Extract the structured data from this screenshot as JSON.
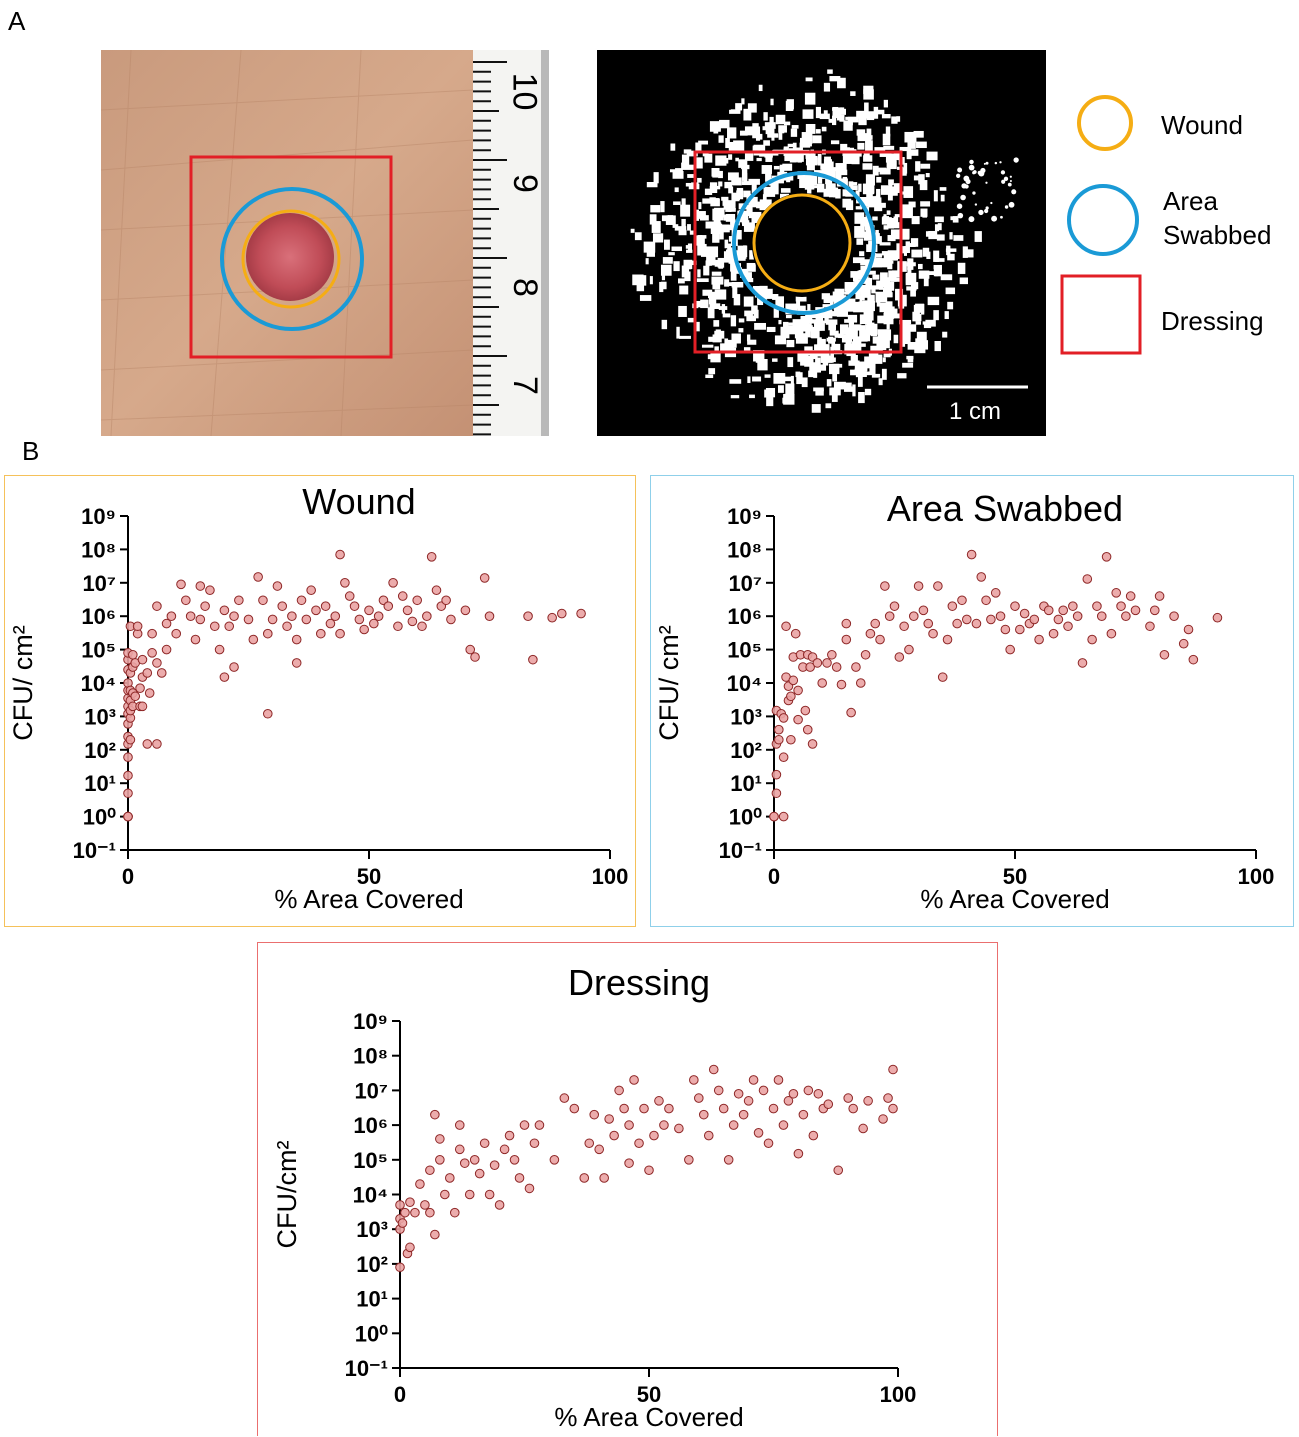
{
  "panels": {
    "a": "A",
    "b": "B"
  },
  "legend": {
    "wound": "Wound",
    "area_swabbed_line1": "Area",
    "area_swabbed_line2": "Swabbed",
    "dressing": "Dressing"
  },
  "colors": {
    "wound": "#f5ad14",
    "area_swabbed": "#1a9ad6",
    "dressing": "#e21f26",
    "point_fill": "#eaa3a3",
    "point_stroke": "#8e2727"
  },
  "ruler": {
    "ticks": [
      "10",
      "9",
      "8",
      "7"
    ]
  },
  "scale_bar": {
    "label": "1 cm"
  },
  "chart_data": [
    {
      "type": "scatter",
      "title": "Wound",
      "xlabel": "% Area Covered",
      "ylabel": "CFU/ cm²",
      "y_scale": "log10",
      "xlim": [
        0,
        100
      ],
      "ylim_exponent": [
        -1,
        9
      ],
      "x_ticks": [
        "0",
        "50",
        "100"
      ],
      "y_ticks": [
        "10⁻¹",
        "10⁰",
        "10¹",
        "10²",
        "10³",
        "10⁴",
        "10⁵",
        "10⁶",
        "10⁷",
        "10⁸",
        "10⁹"
      ],
      "border_color": "#f5c15a",
      "points": [
        [
          0,
          1
        ],
        [
          0,
          1
        ],
        [
          0,
          1
        ],
        [
          0,
          5
        ],
        [
          0,
          17
        ],
        [
          0,
          60
        ],
        [
          0,
          150
        ],
        [
          0,
          250
        ],
        [
          0,
          600
        ],
        [
          0,
          1200
        ],
        [
          0,
          2000
        ],
        [
          0,
          3500
        ],
        [
          0,
          6000
        ],
        [
          0,
          10000
        ],
        [
          0,
          25000
        ],
        [
          0,
          50000
        ],
        [
          0,
          80000
        ],
        [
          0.5,
          200
        ],
        [
          0.5,
          900
        ],
        [
          0.5,
          1500
        ],
        [
          0.5,
          3000
        ],
        [
          0.5,
          6000
        ],
        [
          0.5,
          20000
        ],
        [
          0.5,
          500000
        ],
        [
          1,
          2000
        ],
        [
          1,
          5000
        ],
        [
          1,
          30000
        ],
        [
          1,
          70000
        ],
        [
          1.5,
          4000
        ],
        [
          1.5,
          40000
        ],
        [
          2,
          300000
        ],
        [
          2,
          500000
        ],
        [
          2.5,
          2000
        ],
        [
          2.5,
          7000
        ],
        [
          3,
          50000
        ],
        [
          3,
          15000
        ],
        [
          3,
          2000
        ],
        [
          4,
          150
        ],
        [
          4,
          20000
        ],
        [
          4.5,
          5000
        ],
        [
          5,
          80000
        ],
        [
          5,
          300000
        ],
        [
          6,
          150
        ],
        [
          6,
          40000
        ],
        [
          6,
          2000000
        ],
        [
          7,
          20000
        ],
        [
          8,
          600000
        ],
        [
          8,
          100000
        ],
        [
          9,
          1000000
        ],
        [
          10,
          300000
        ],
        [
          11,
          9000000
        ],
        [
          12,
          3000000
        ],
        [
          13,
          1000000
        ],
        [
          14,
          200000
        ],
        [
          15,
          8000000
        ],
        [
          15,
          800000
        ],
        [
          16,
          2000000
        ],
        [
          17,
          6000000
        ],
        [
          18,
          500000
        ],
        [
          19,
          100000
        ],
        [
          20,
          15000
        ],
        [
          20,
          1500000
        ],
        [
          21,
          500000
        ],
        [
          22,
          30000
        ],
        [
          22,
          1000000
        ],
        [
          23,
          3000000
        ],
        [
          25,
          800000
        ],
        [
          26,
          200000
        ],
        [
          27,
          15000000
        ],
        [
          28,
          3000000
        ],
        [
          29,
          1200
        ],
        [
          29,
          300000
        ],
        [
          30,
          800000
        ],
        [
          31,
          8000000
        ],
        [
          32,
          2000000
        ],
        [
          33,
          500000
        ],
        [
          34,
          1000000
        ],
        [
          35,
          200000
        ],
        [
          35,
          40000
        ],
        [
          36,
          3000000
        ],
        [
          37,
          800000
        ],
        [
          38,
          6000000
        ],
        [
          39,
          1500000
        ],
        [
          40,
          300000
        ],
        [
          41,
          2000000
        ],
        [
          42,
          600000
        ],
        [
          43,
          1000000
        ],
        [
          44,
          70000000
        ],
        [
          44,
          300000
        ],
        [
          45,
          10000000
        ],
        [
          46,
          4000000
        ],
        [
          47,
          2000000
        ],
        [
          48,
          800000
        ],
        [
          49,
          400000
        ],
        [
          50,
          1500000
        ],
        [
          51,
          600000
        ],
        [
          52,
          1000000
        ],
        [
          53,
          3000000
        ],
        [
          54,
          2000000
        ],
        [
          55,
          10000000
        ],
        [
          56,
          500000
        ],
        [
          57,
          4000000
        ],
        [
          58,
          1500000
        ],
        [
          59,
          700000
        ],
        [
          60,
          3000000
        ],
        [
          61,
          500000
        ],
        [
          62,
          1000000
        ],
        [
          63,
          60000000
        ],
        [
          64,
          6000000
        ],
        [
          65,
          2000000
        ],
        [
          66,
          3000000
        ],
        [
          67,
          800000
        ],
        [
          70,
          1500000
        ],
        [
          71,
          100000
        ],
        [
          72,
          60000
        ],
        [
          74,
          14000000
        ],
        [
          75,
          1000000
        ],
        [
          83,
          1000000
        ],
        [
          84,
          50000
        ],
        [
          88,
          900000
        ],
        [
          90,
          1200000
        ],
        [
          94,
          1200000
        ]
      ]
    },
    {
      "type": "scatter",
      "title": "Area Swabbed",
      "xlabel": "% Area Covered",
      "ylabel": "CFU/ cm²",
      "y_scale": "log10",
      "xlim": [
        0,
        100
      ],
      "ylim_exponent": [
        -1,
        9
      ],
      "x_ticks": [
        "0",
        "50",
        "100"
      ],
      "y_ticks": [
        "10⁻¹",
        "10⁰",
        "10¹",
        "10²",
        "10³",
        "10⁴",
        "10⁵",
        "10⁶",
        "10⁷",
        "10⁸",
        "10⁹"
      ],
      "border_color": "#8fd0ea",
      "points": [
        [
          0,
          1
        ],
        [
          0,
          1
        ],
        [
          0.5,
          5
        ],
        [
          0.5,
          18
        ],
        [
          0.5,
          150
        ],
        [
          0.5,
          1500
        ],
        [
          1,
          400
        ],
        [
          1,
          200
        ],
        [
          1.5,
          1200
        ],
        [
          2,
          1
        ],
        [
          2,
          900
        ],
        [
          2,
          60
        ],
        [
          2.5,
          500000
        ],
        [
          2.5,
          15000
        ],
        [
          3,
          3000
        ],
        [
          3,
          8000
        ],
        [
          3.5,
          200
        ],
        [
          3.5,
          4000
        ],
        [
          4,
          12000
        ],
        [
          4,
          60000
        ],
        [
          4.5,
          300000
        ],
        [
          5,
          800
        ],
        [
          5,
          6000
        ],
        [
          5.5,
          70000
        ],
        [
          6,
          30000
        ],
        [
          6.5,
          1500
        ],
        [
          7,
          400
        ],
        [
          7,
          70000
        ],
        [
          7.5,
          30000
        ],
        [
          8,
          150
        ],
        [
          8,
          60000
        ],
        [
          9,
          40000
        ],
        [
          10,
          10000
        ],
        [
          11,
          40000
        ],
        [
          12,
          70000
        ],
        [
          13,
          30000
        ],
        [
          14,
          9000
        ],
        [
          15,
          200000
        ],
        [
          15,
          600000
        ],
        [
          16,
          1300
        ],
        [
          17,
          30000
        ],
        [
          18,
          10000
        ],
        [
          19,
          70000
        ],
        [
          20,
          300000
        ],
        [
          21,
          600000
        ],
        [
          22,
          200000
        ],
        [
          23,
          8000000
        ],
        [
          24,
          1000000
        ],
        [
          25,
          2000000
        ],
        [
          26,
          60000
        ],
        [
          27,
          500000
        ],
        [
          28,
          100000
        ],
        [
          29,
          1000000
        ],
        [
          30,
          8000000
        ],
        [
          31,
          1500000
        ],
        [
          32,
          600000
        ],
        [
          33,
          300000
        ],
        [
          34,
          8000000
        ],
        [
          35,
          15000
        ],
        [
          36,
          200000
        ],
        [
          37,
          2000000
        ],
        [
          38,
          600000
        ],
        [
          39,
          3000000
        ],
        [
          40,
          800000
        ],
        [
          41,
          70000000
        ],
        [
          42,
          600000
        ],
        [
          43,
          15000000
        ],
        [
          44,
          3000000
        ],
        [
          45,
          800000
        ],
        [
          46,
          5000000
        ],
        [
          47,
          1000000
        ],
        [
          48,
          400000
        ],
        [
          49,
          100000
        ],
        [
          50,
          2000000
        ],
        [
          51,
          400000
        ],
        [
          52,
          1200000
        ],
        [
          53,
          600000
        ],
        [
          54,
          800000
        ],
        [
          55,
          200000
        ],
        [
          56,
          2000000
        ],
        [
          57,
          1500000
        ],
        [
          58,
          300000
        ],
        [
          59,
          800000
        ],
        [
          60,
          1500000
        ],
        [
          61,
          500000
        ],
        [
          62,
          2000000
        ],
        [
          63,
          1000000
        ],
        [
          64,
          40000
        ],
        [
          65,
          13000000
        ],
        [
          66,
          200000
        ],
        [
          67,
          2000000
        ],
        [
          68,
          1000000
        ],
        [
          69,
          60000000
        ],
        [
          70,
          300000
        ],
        [
          71,
          5000000
        ],
        [
          72,
          2000000
        ],
        [
          73,
          1000000
        ],
        [
          74,
          4000000
        ],
        [
          75,
          1500000
        ],
        [
          78,
          500000
        ],
        [
          79,
          1500000
        ],
        [
          80,
          4000000
        ],
        [
          81,
          70000
        ],
        [
          83,
          1000000
        ],
        [
          85,
          150000
        ],
        [
          86,
          400000
        ],
        [
          87,
          50000
        ],
        [
          92,
          900000
        ]
      ]
    },
    {
      "type": "scatter",
      "title": "Dressing",
      "xlabel": "% Area Covered",
      "ylabel": "CFU/cm²",
      "y_scale": "log10",
      "xlim": [
        0,
        100
      ],
      "ylim_exponent": [
        -1,
        9
      ],
      "x_ticks": [
        "0",
        "50",
        "100"
      ],
      "y_ticks": [
        "10⁻¹",
        "10⁰",
        "10¹",
        "10²",
        "10³",
        "10⁴",
        "10⁵",
        "10⁶",
        "10⁷",
        "10⁸",
        "10⁹"
      ],
      "border_color": "#ea6f6f",
      "points": [
        [
          0,
          80
        ],
        [
          0,
          1000
        ],
        [
          0,
          2000
        ],
        [
          0,
          5000
        ],
        [
          0.5,
          1500
        ],
        [
          1,
          3000
        ],
        [
          1.5,
          200
        ],
        [
          2,
          300
        ],
        [
          2,
          6000
        ],
        [
          3,
          3000
        ],
        [
          4,
          20000
        ],
        [
          5,
          5000
        ],
        [
          6,
          3000
        ],
        [
          6,
          50000
        ],
        [
          7,
          700
        ],
        [
          7,
          2000000
        ],
        [
          8,
          400000
        ],
        [
          8,
          100000
        ],
        [
          9,
          10000
        ],
        [
          10,
          30000
        ],
        [
          11,
          3000
        ],
        [
          12,
          200000
        ],
        [
          12,
          1000000
        ],
        [
          13,
          80000
        ],
        [
          14,
          10000
        ],
        [
          15,
          100000
        ],
        [
          16,
          40000
        ],
        [
          17,
          300000
        ],
        [
          18,
          10000
        ],
        [
          19,
          70000
        ],
        [
          20,
          5000
        ],
        [
          21,
          200000
        ],
        [
          22,
          500000
        ],
        [
          23,
          100000
        ],
        [
          24,
          30000
        ],
        [
          25,
          1000000
        ],
        [
          26,
          15000
        ],
        [
          27,
          300000
        ],
        [
          28,
          1000000
        ],
        [
          31,
          100000
        ],
        [
          33,
          6000000
        ],
        [
          35,
          3000000
        ],
        [
          37,
          30000
        ],
        [
          38,
          300000
        ],
        [
          39,
          2000000
        ],
        [
          40,
          200000
        ],
        [
          41,
          30000
        ],
        [
          42,
          1500000
        ],
        [
          43,
          500000
        ],
        [
          44,
          10000000
        ],
        [
          45,
          3000000
        ],
        [
          46,
          80000
        ],
        [
          46,
          1000000
        ],
        [
          47,
          20000000
        ],
        [
          48,
          300000
        ],
        [
          49,
          3000000
        ],
        [
          50,
          50000
        ],
        [
          51,
          500000
        ],
        [
          52,
          5000000
        ],
        [
          53,
          1000000
        ],
        [
          54,
          3000000
        ],
        [
          56,
          800000
        ],
        [
          58,
          100000
        ],
        [
          59,
          20000000
        ],
        [
          60,
          6000000
        ],
        [
          61,
          2000000
        ],
        [
          62,
          500000
        ],
        [
          63,
          40000000
        ],
        [
          64,
          10000000
        ],
        [
          65,
          3000000
        ],
        [
          66,
          100000
        ],
        [
          67,
          1000000
        ],
        [
          68,
          8000000
        ],
        [
          69,
          2000000
        ],
        [
          70,
          5000000
        ],
        [
          71,
          20000000
        ],
        [
          72,
          600000
        ],
        [
          73,
          10000000
        ],
        [
          74,
          300000
        ],
        [
          75,
          3000000
        ],
        [
          76,
          20000000
        ],
        [
          77,
          1000000
        ],
        [
          78,
          5000000
        ],
        [
          79,
          8000000
        ],
        [
          80,
          150000
        ],
        [
          81,
          2000000
        ],
        [
          82,
          10000000
        ],
        [
          83,
          500000
        ],
        [
          84,
          8000000
        ],
        [
          85,
          3000000
        ],
        [
          86,
          4000000
        ],
        [
          88,
          50000
        ],
        [
          90,
          6000000
        ],
        [
          91,
          3000000
        ],
        [
          93,
          800000
        ],
        [
          94,
          5000000
        ],
        [
          97,
          1500000
        ],
        [
          98,
          6000000
        ],
        [
          99,
          40000000
        ],
        [
          99,
          3000000
        ]
      ]
    }
  ]
}
